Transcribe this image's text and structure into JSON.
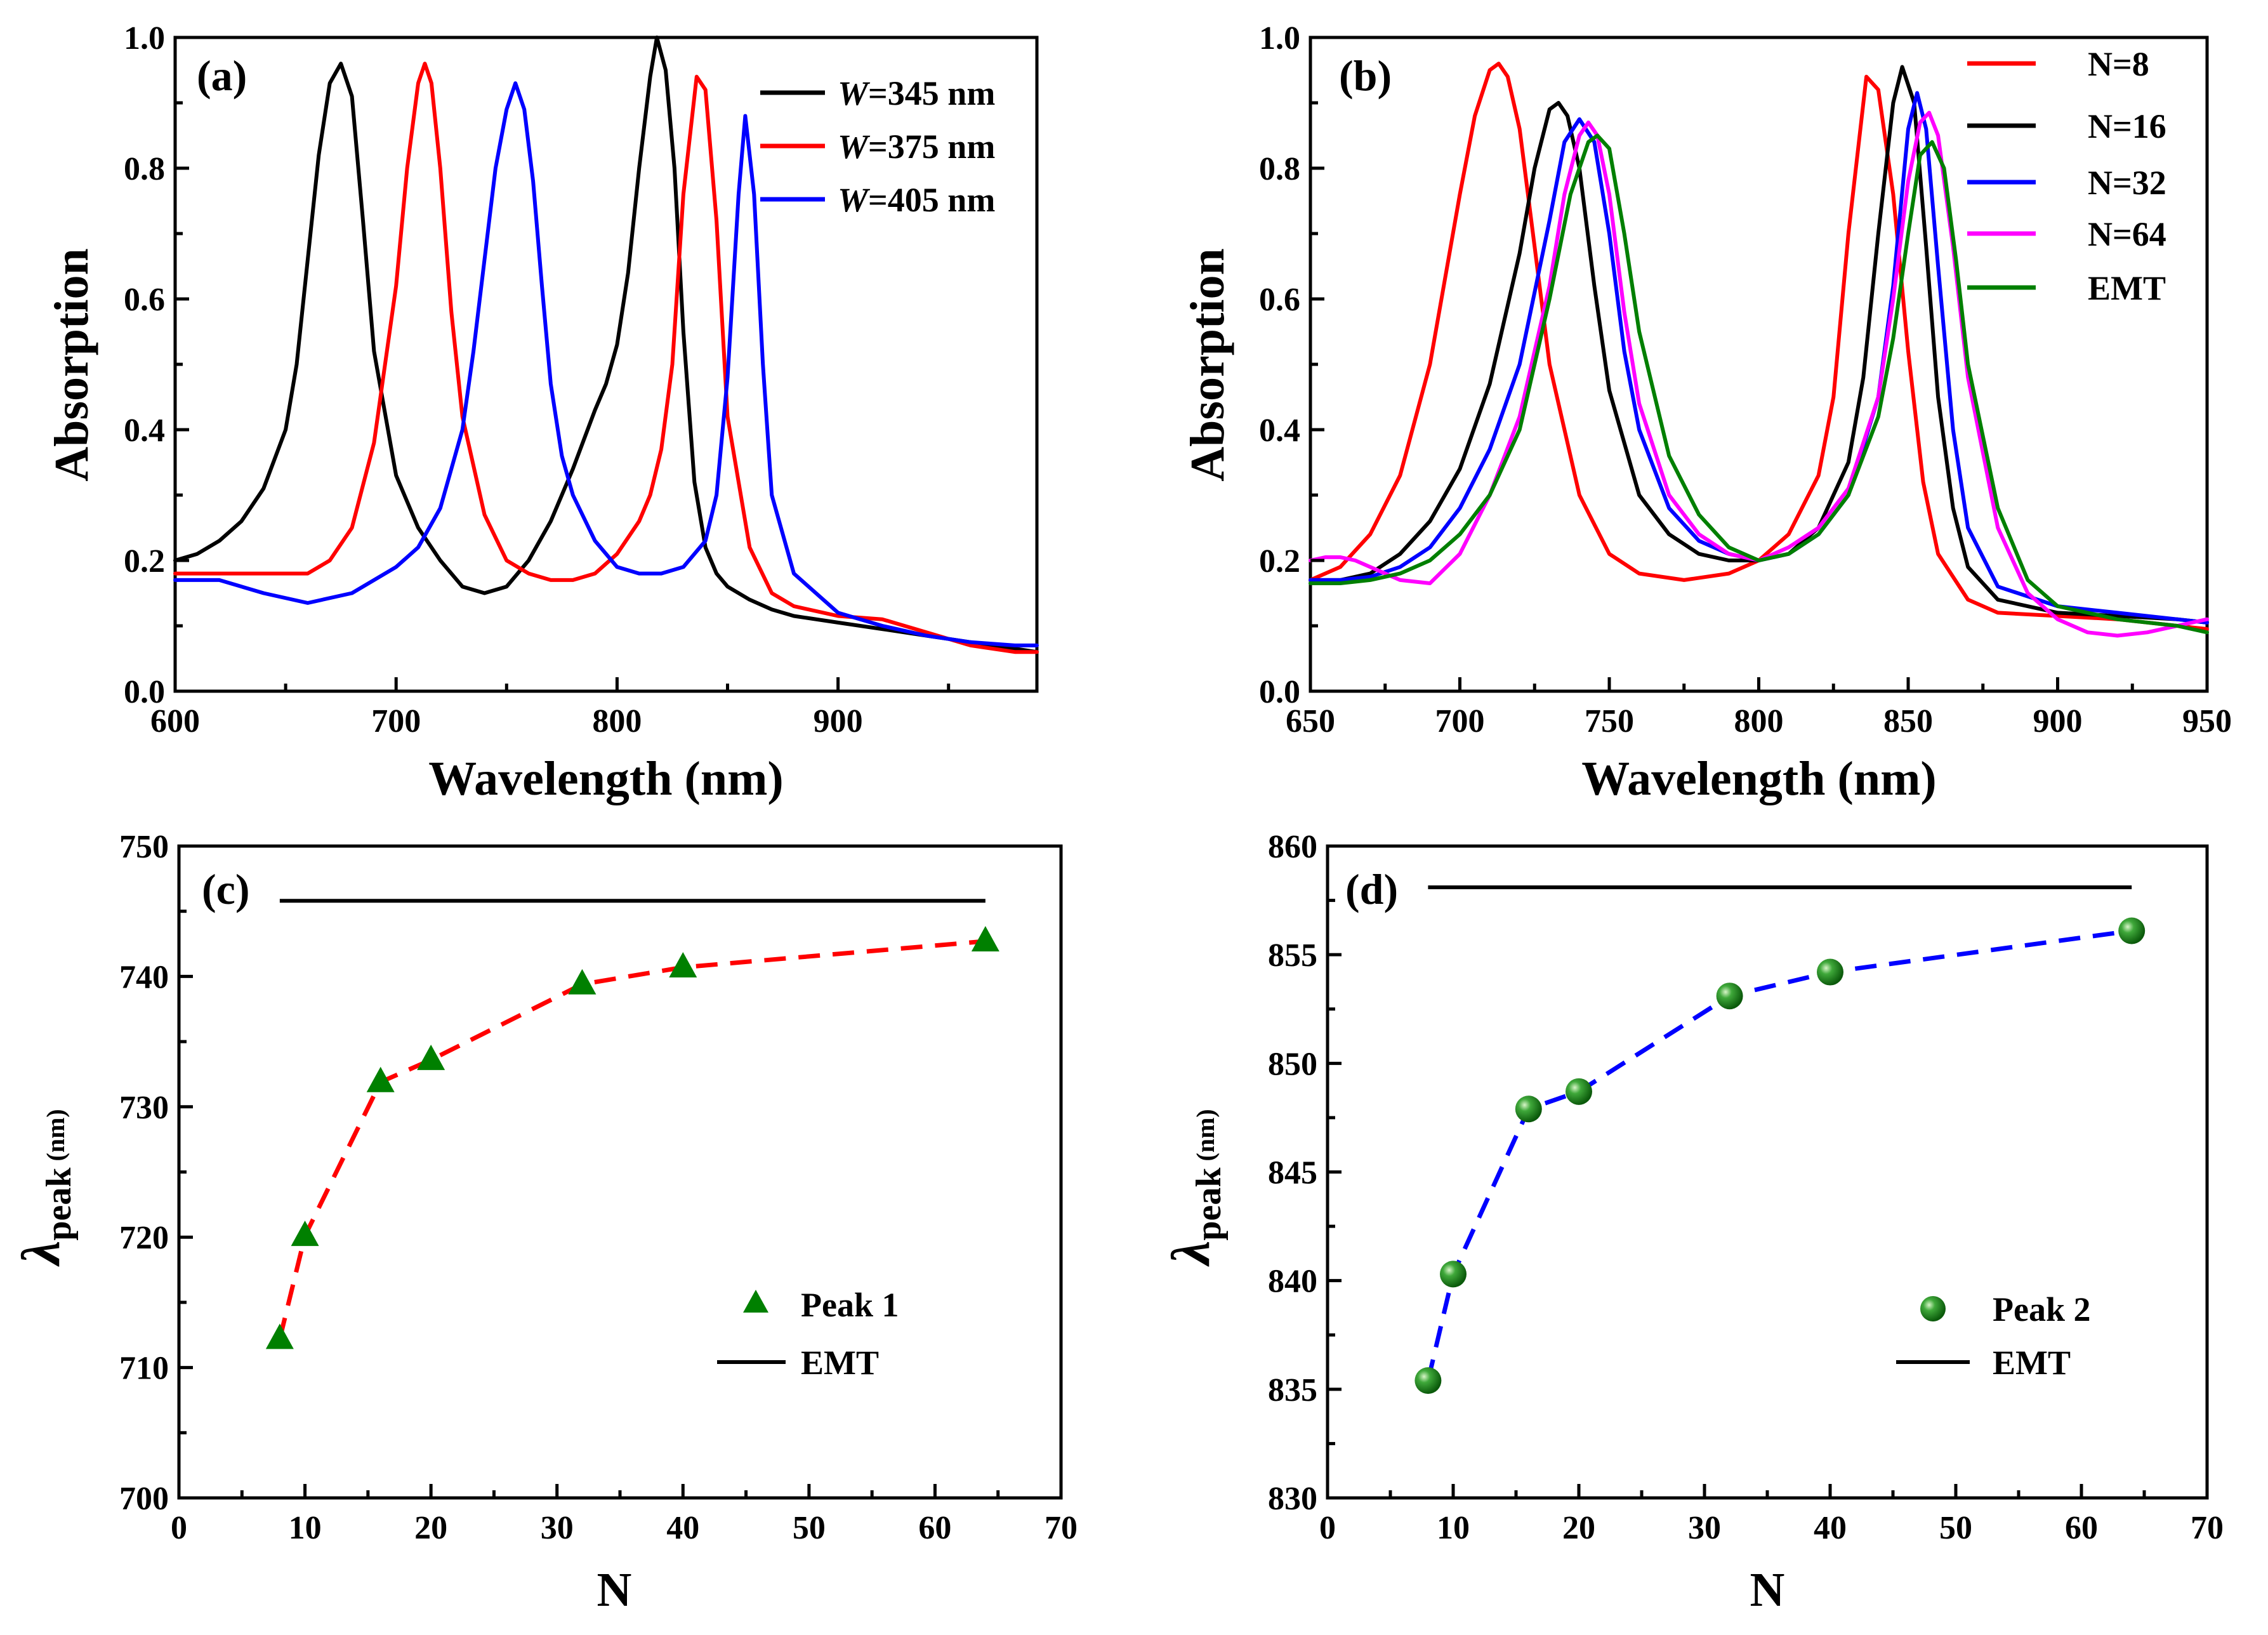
{
  "chart_data": [
    {
      "panel": "(a)",
      "type": "line",
      "xlabel": "Wavelength (nm)",
      "ylabel": "Absorption",
      "xlim": [
        600,
        990
      ],
      "ylim": [
        0,
        1.0
      ],
      "xticks": [
        600,
        700,
        800,
        900
      ],
      "yticks": [
        0.0,
        0.2,
        0.4,
        0.6,
        0.8,
        1.0
      ],
      "ytick_labels": [
        "0.0",
        "0.2",
        "0.4",
        "0.6",
        "0.8",
        "1.0"
      ],
      "legend_position": "top-right",
      "series": [
        {
          "name": "=345 nm",
          "italic_prefix": "W",
          "color": "#000000",
          "x": [
            600,
            610,
            620,
            630,
            640,
            650,
            655,
            660,
            665,
            670,
            675,
            680,
            685,
            690,
            700,
            710,
            720,
            730,
            740,
            750,
            760,
            770,
            780,
            790,
            795,
            800,
            805,
            810,
            815,
            818,
            822,
            826,
            830,
            835,
            840,
            845,
            850,
            860,
            870,
            880,
            900,
            920,
            940,
            960,
            980,
            990
          ],
          "y": [
            0.2,
            0.21,
            0.23,
            0.26,
            0.31,
            0.4,
            0.5,
            0.66,
            0.82,
            0.93,
            0.96,
            0.91,
            0.72,
            0.52,
            0.33,
            0.25,
            0.2,
            0.16,
            0.15,
            0.16,
            0.2,
            0.26,
            0.34,
            0.43,
            0.47,
            0.53,
            0.64,
            0.8,
            0.94,
            1.0,
            0.95,
            0.8,
            0.55,
            0.32,
            0.22,
            0.18,
            0.16,
            0.14,
            0.125,
            0.115,
            0.105,
            0.095,
            0.085,
            0.075,
            0.065,
            0.06
          ]
        },
        {
          "name": "=375 nm",
          "italic_prefix": "W",
          "color": "#ff0000",
          "x": [
            600,
            620,
            640,
            660,
            670,
            680,
            690,
            700,
            705,
            710,
            713,
            716,
            720,
            725,
            730,
            740,
            750,
            760,
            770,
            780,
            790,
            800,
            810,
            815,
            820,
            825,
            830,
            836,
            840,
            845,
            850,
            860,
            870,
            880,
            900,
            920,
            940,
            960,
            980,
            990
          ],
          "y": [
            0.18,
            0.18,
            0.18,
            0.18,
            0.2,
            0.25,
            0.38,
            0.62,
            0.8,
            0.93,
            0.96,
            0.93,
            0.8,
            0.58,
            0.42,
            0.27,
            0.2,
            0.18,
            0.17,
            0.17,
            0.18,
            0.21,
            0.26,
            0.3,
            0.37,
            0.5,
            0.76,
            0.94,
            0.92,
            0.72,
            0.42,
            0.22,
            0.15,
            0.13,
            0.115,
            0.11,
            0.09,
            0.07,
            0.06,
            0.06
          ]
        },
        {
          "name": "=405 nm",
          "italic_prefix": "W",
          "color": "#0000ff",
          "x": [
            600,
            620,
            640,
            660,
            680,
            700,
            710,
            720,
            730,
            735,
            740,
            745,
            750,
            754,
            758,
            762,
            766,
            770,
            775,
            780,
            790,
            800,
            810,
            820,
            830,
            840,
            845,
            850,
            855,
            858,
            862,
            866,
            870,
            880,
            900,
            920,
            940,
            960,
            980,
            990
          ],
          "y": [
            0.17,
            0.17,
            0.15,
            0.135,
            0.15,
            0.19,
            0.22,
            0.28,
            0.4,
            0.52,
            0.66,
            0.8,
            0.89,
            0.93,
            0.89,
            0.78,
            0.62,
            0.47,
            0.36,
            0.3,
            0.23,
            0.19,
            0.18,
            0.18,
            0.19,
            0.23,
            0.3,
            0.48,
            0.76,
            0.88,
            0.76,
            0.5,
            0.3,
            0.18,
            0.12,
            0.1,
            0.085,
            0.075,
            0.07,
            0.07
          ]
        }
      ]
    },
    {
      "panel": "(b)",
      "type": "line",
      "xlabel": "Wavelength (nm)",
      "ylabel": "Absorption",
      "xlim": [
        650,
        950
      ],
      "ylim": [
        0,
        1.0
      ],
      "xticks": [
        650,
        700,
        750,
        800,
        850,
        900,
        950
      ],
      "yticks": [
        0.0,
        0.2,
        0.4,
        0.6,
        0.8,
        1.0
      ],
      "ytick_labels": [
        "0.0",
        "0.2",
        "0.4",
        "0.6",
        "0.8",
        "1.0"
      ],
      "legend_position": "top-right",
      "series": [
        {
          "name": "N=8",
          "color": "#ff0000",
          "x": [
            650,
            660,
            670,
            680,
            690,
            700,
            705,
            710,
            713,
            716,
            720,
            725,
            730,
            740,
            750,
            760,
            775,
            790,
            800,
            810,
            820,
            825,
            830,
            836,
            840,
            845,
            850,
            855,
            860,
            870,
            880,
            900,
            920,
            940,
            950
          ],
          "y": [
            0.17,
            0.19,
            0.24,
            0.33,
            0.5,
            0.76,
            0.88,
            0.95,
            0.96,
            0.94,
            0.86,
            0.68,
            0.5,
            0.3,
            0.21,
            0.18,
            0.17,
            0.18,
            0.2,
            0.24,
            0.33,
            0.45,
            0.7,
            0.94,
            0.92,
            0.76,
            0.52,
            0.32,
            0.21,
            0.14,
            0.12,
            0.115,
            0.11,
            0.1,
            0.095
          ]
        },
        {
          "name": "N=16",
          "color": "#000000",
          "x": [
            650,
            660,
            670,
            680,
            690,
            700,
            710,
            720,
            725,
            730,
            733,
            736,
            740,
            745,
            750,
            760,
            770,
            780,
            790,
            800,
            810,
            820,
            830,
            835,
            840,
            845,
            848,
            852,
            856,
            860,
            865,
            870,
            880,
            900,
            920,
            940,
            950
          ],
          "y": [
            0.17,
            0.17,
            0.18,
            0.21,
            0.26,
            0.34,
            0.47,
            0.67,
            0.8,
            0.89,
            0.9,
            0.88,
            0.8,
            0.62,
            0.46,
            0.3,
            0.24,
            0.21,
            0.2,
            0.2,
            0.21,
            0.25,
            0.35,
            0.48,
            0.7,
            0.9,
            0.955,
            0.9,
            0.68,
            0.45,
            0.28,
            0.19,
            0.14,
            0.12,
            0.115,
            0.11,
            0.105
          ]
        },
        {
          "name": "N=32",
          "color": "#0000ff",
          "x": [
            650,
            660,
            670,
            680,
            690,
            700,
            710,
            720,
            730,
            735,
            740,
            745,
            750,
            755,
            760,
            770,
            780,
            790,
            800,
            810,
            820,
            830,
            840,
            845,
            850,
            853,
            856,
            860,
            865,
            870,
            880,
            900,
            920,
            940,
            950
          ],
          "y": [
            0.17,
            0.17,
            0.175,
            0.19,
            0.22,
            0.28,
            0.37,
            0.5,
            0.72,
            0.84,
            0.875,
            0.84,
            0.7,
            0.52,
            0.4,
            0.28,
            0.23,
            0.21,
            0.2,
            0.21,
            0.24,
            0.3,
            0.45,
            0.62,
            0.86,
            0.915,
            0.86,
            0.65,
            0.4,
            0.25,
            0.16,
            0.13,
            0.12,
            0.11,
            0.105
          ]
        },
        {
          "name": "N=64",
          "color": "#ff00ff",
          "x": [
            650,
            655,
            660,
            665,
            670,
            680,
            690,
            700,
            710,
            720,
            730,
            735,
            740,
            743,
            746,
            750,
            755,
            760,
            770,
            780,
            790,
            800,
            810,
            820,
            830,
            840,
            845,
            850,
            854,
            857,
            860,
            865,
            870,
            880,
            890,
            900,
            910,
            920,
            930,
            940,
            950
          ],
          "y": [
            0.2,
            0.205,
            0.205,
            0.2,
            0.19,
            0.17,
            0.165,
            0.21,
            0.3,
            0.42,
            0.62,
            0.76,
            0.85,
            0.87,
            0.85,
            0.76,
            0.58,
            0.44,
            0.3,
            0.24,
            0.21,
            0.2,
            0.22,
            0.25,
            0.31,
            0.45,
            0.6,
            0.78,
            0.87,
            0.885,
            0.85,
            0.68,
            0.48,
            0.25,
            0.15,
            0.11,
            0.09,
            0.085,
            0.09,
            0.1,
            0.11
          ]
        },
        {
          "name": "EMT",
          "color": "#007f00",
          "x": [
            650,
            660,
            670,
            680,
            690,
            700,
            710,
            720,
            730,
            737,
            743,
            746,
            750,
            755,
            760,
            770,
            780,
            790,
            800,
            810,
            820,
            830,
            840,
            845,
            850,
            854,
            858,
            862,
            866,
            870,
            880,
            890,
            900,
            920,
            940,
            950
          ],
          "y": [
            0.165,
            0.165,
            0.17,
            0.18,
            0.2,
            0.24,
            0.3,
            0.4,
            0.6,
            0.76,
            0.84,
            0.85,
            0.83,
            0.7,
            0.55,
            0.36,
            0.27,
            0.22,
            0.2,
            0.21,
            0.24,
            0.3,
            0.42,
            0.54,
            0.7,
            0.82,
            0.84,
            0.8,
            0.66,
            0.5,
            0.28,
            0.17,
            0.13,
            0.11,
            0.1,
            0.09
          ]
        }
      ]
    },
    {
      "panel": "(c)",
      "type": "scatter",
      "xlabel": "N",
      "ylabel_main": "λ",
      "ylabel_sub": "peak",
      "ylabel_unit": " (nm)",
      "xlim": [
        0,
        70
      ],
      "ylim": [
        700,
        750
      ],
      "xticks": [
        0,
        10,
        20,
        30,
        40,
        50,
        60,
        70
      ],
      "yticks": [
        700,
        710,
        720,
        730,
        740,
        750
      ],
      "legend_position": "bottom-right",
      "series": [
        {
          "name": "Peak 1",
          "color": "#008000",
          "marker": "triangle",
          "x": [
            8,
            10,
            16,
            20,
            32,
            40,
            64
          ],
          "y": [
            712.2,
            720.1,
            731.9,
            733.6,
            739.4,
            740.7,
            742.7
          ]
        },
        {
          "name": "EMT",
          "color": "#000000",
          "marker": "line",
          "x": [
            8,
            64
          ],
          "y": [
            745.8,
            745.8
          ]
        }
      ],
      "fit_line": {
        "color": "#ff0000",
        "style": "dashed",
        "x": [
          8,
          10,
          16,
          20,
          32,
          40,
          64
        ],
        "y": [
          712.2,
          720.1,
          731.9,
          733.6,
          739.4,
          740.7,
          742.7
        ]
      }
    },
    {
      "panel": "(d)",
      "type": "scatter",
      "xlabel": "N",
      "ylabel_main": "λ",
      "ylabel_sub": "peak",
      "ylabel_unit": " (nm)",
      "xlim": [
        0,
        70
      ],
      "ylim": [
        830,
        860
      ],
      "xticks": [
        0,
        10,
        20,
        30,
        40,
        50,
        60,
        70
      ],
      "yticks": [
        830,
        835,
        840,
        845,
        850,
        855,
        860
      ],
      "legend_position": "bottom-right",
      "series": [
        {
          "name": "Peak 2",
          "color": "#008000",
          "marker": "sphere",
          "x": [
            8,
            10,
            16,
            20,
            32,
            40,
            64
          ],
          "y": [
            835.4,
            840.3,
            847.9,
            848.7,
            853.1,
            854.2,
            856.1
          ]
        },
        {
          "name": "EMT",
          "color": "#000000",
          "marker": "line",
          "x": [
            8,
            64
          ],
          "y": [
            858.1,
            858.1
          ]
        }
      ],
      "fit_line": {
        "color": "#0000ff",
        "style": "dashed",
        "x": [
          8,
          10,
          16,
          20,
          32,
          40,
          64
        ],
        "y": [
          835.4,
          840.3,
          847.9,
          848.7,
          853.1,
          854.2,
          856.1
        ]
      }
    }
  ]
}
